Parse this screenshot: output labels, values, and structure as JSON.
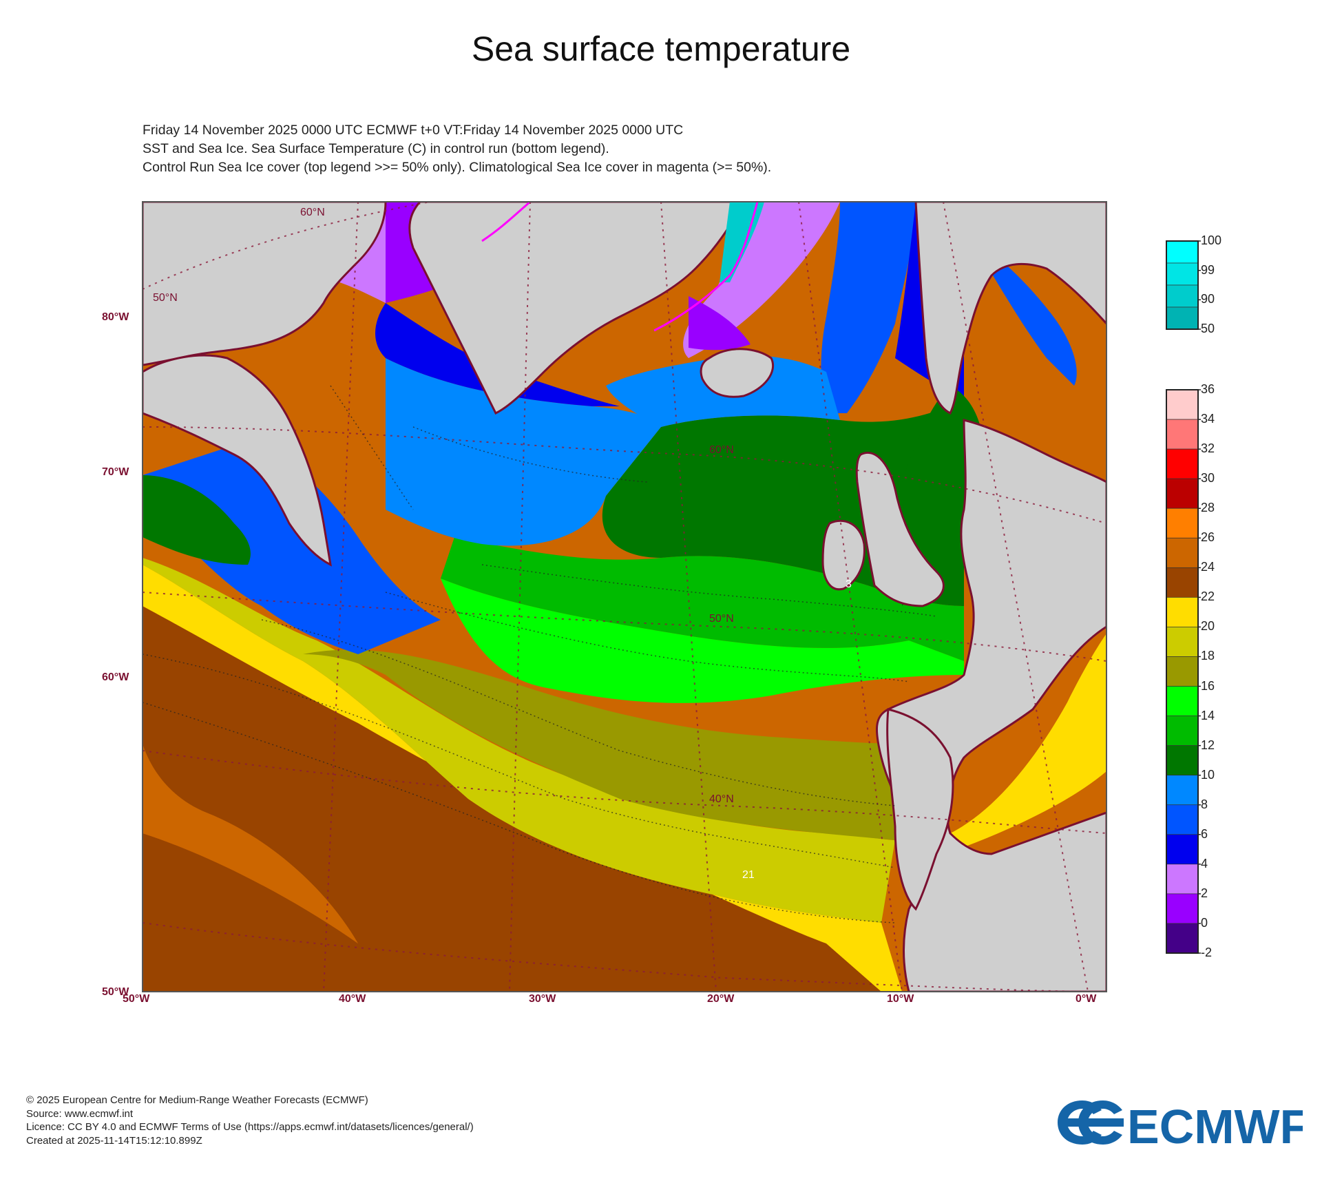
{
  "title": "Sea surface temperature",
  "header": {
    "line1": "Friday 14 November 2025 0000 UTC  ECMWF  t+0  VT:Friday 14 November 2025 0000 UTC",
    "line2": "SST and Sea Ice. Sea Surface Temperature (C) in control run (bottom legend).",
    "line3": "Control Run Sea Ice cover (top legend >>= 50% only). Climatological Sea Ice cover in magenta (>= 50%)."
  },
  "axes": {
    "left_labels": [
      "80°W",
      "70°W",
      "60°W",
      "50°W"
    ],
    "bottom_labels": [
      "50°W",
      "40°W",
      "30°W",
      "20°W",
      "10°W",
      "0°W"
    ],
    "inner_labels": [
      "60°N",
      "50°N",
      "60°N",
      "50°N",
      "40°N"
    ],
    "contour_labels": [
      "3",
      "21"
    ]
  },
  "colors": {
    "land": "#cfcfcf",
    "coast": "#7a1030",
    "frame": "#555555"
  },
  "ice_legend": {
    "levels": [
      "100",
      "99",
      "90",
      "50"
    ],
    "colors": [
      "#00ffff",
      "#00e5e5",
      "#00cccc",
      "#00b3b3"
    ]
  },
  "sst_legend": {
    "levels": [
      "36",
      "34",
      "32",
      "30",
      "28",
      "26",
      "24",
      "22",
      "20",
      "18",
      "16",
      "14",
      "12",
      "10",
      "8",
      "6",
      "4",
      "2",
      "0",
      "-2"
    ],
    "colors": [
      "#ffcccc",
      "#ff7777",
      "#ff0000",
      "#bb0000",
      "#ff7f00",
      "#cc6600",
      "#994400",
      "#ffdd00",
      "#cccc00",
      "#999900",
      "#00ff00",
      "#00bb00",
      "#007700",
      "#0088ff",
      "#0055ff",
      "#0000ee",
      "#cc77ff",
      "#9900ff",
      "#440088"
    ]
  },
  "footer": {
    "line1": "© 2025 European Centre for Medium-Range Weather Forecasts (ECMWF)",
    "line2": "Source: www.ecmwf.int",
    "line3": "Licence: CC BY 4.0 and ECMWF Terms of Use (https://apps.ecmwf.int/datasets/licences/general/)",
    "line4": "Created at 2025-11-14T15:12:10.899Z"
  },
  "logo": {
    "text": "ECMWF",
    "color": "#1565a8"
  }
}
